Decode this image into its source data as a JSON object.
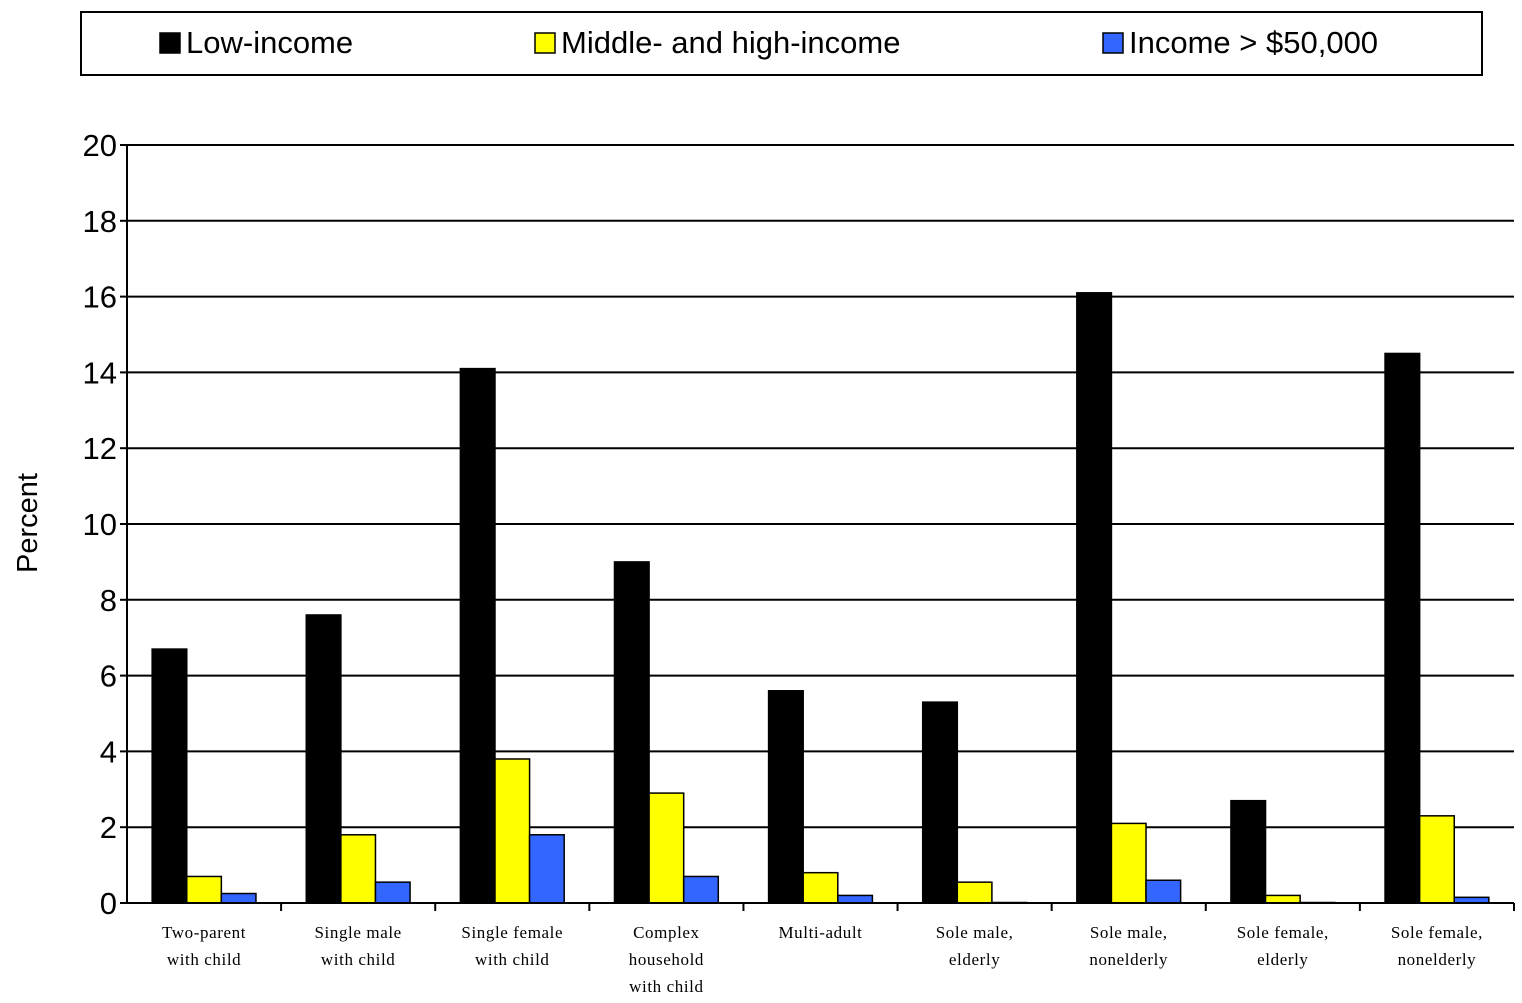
{
  "chart_data": {
    "type": "bar",
    "title": "",
    "xlabel": "",
    "ylabel": "Percent",
    "ylim": [
      0,
      20
    ],
    "y_ticks": [
      0,
      2,
      4,
      6,
      8,
      10,
      12,
      14,
      16,
      18,
      20
    ],
    "grid": true,
    "legend_position": "top",
    "categories": [
      [
        "Two-parent",
        "with child"
      ],
      [
        "Single male",
        "with child"
      ],
      [
        "Single female",
        "with child"
      ],
      [
        "Complex",
        "household",
        "with child"
      ],
      [
        "Multi-adult"
      ],
      [
        "Sole male,",
        "elderly"
      ],
      [
        "Sole male,",
        "nonelderly"
      ],
      [
        "Sole female,",
        "elderly"
      ],
      [
        "Sole female,",
        "nonelderly"
      ]
    ],
    "series": [
      {
        "name": "Low-income",
        "color": "#000000",
        "values": [
          6.7,
          7.6,
          14.1,
          9.0,
          5.6,
          5.3,
          16.1,
          2.7,
          14.5
        ]
      },
      {
        "name": "Middle- and high-income",
        "color": "#ffff00",
        "values": [
          0.7,
          1.8,
          3.8,
          2.9,
          0.8,
          0.55,
          2.1,
          0.2,
          2.3
        ]
      },
      {
        "name": "Income > $50,000",
        "color": "#3366ff",
        "values": [
          0.25,
          0.55,
          1.8,
          0.7,
          0.2,
          0.0,
          0.6,
          0.0,
          0.15
        ]
      }
    ]
  }
}
